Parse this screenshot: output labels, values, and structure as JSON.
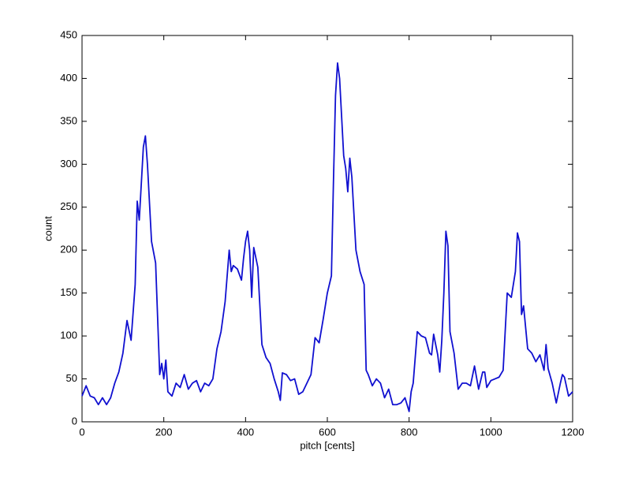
{
  "chart_data": {
    "type": "line",
    "xlabel": "pitch [cents]",
    "ylabel": "count",
    "xlim": [
      0,
      1200
    ],
    "ylim": [
      0,
      450
    ],
    "xticks": [
      0,
      200,
      400,
      600,
      800,
      1000,
      1200
    ],
    "yticks": [
      0,
      50,
      100,
      150,
      200,
      250,
      300,
      350,
      400,
      450
    ],
    "grid": false,
    "series": [
      {
        "color": "#1010d0",
        "x": [
          0,
          10,
          20,
          30,
          40,
          50,
          60,
          70,
          80,
          90,
          100,
          110,
          120,
          130,
          135,
          140,
          150,
          155,
          160,
          170,
          180,
          190,
          195,
          200,
          205,
          210,
          220,
          230,
          240,
          250,
          260,
          270,
          280,
          290,
          300,
          310,
          320,
          330,
          340,
          350,
          360,
          365,
          370,
          380,
          390,
          395,
          400,
          405,
          410,
          415,
          420,
          430,
          440,
          450,
          460,
          470,
          480,
          485,
          490,
          500,
          510,
          520,
          530,
          540,
          550,
          560,
          570,
          580,
          590,
          600,
          610,
          615,
          620,
          625,
          630,
          640,
          645,
          650,
          655,
          660,
          670,
          680,
          690,
          695,
          700,
          710,
          720,
          730,
          740,
          750,
          760,
          770,
          780,
          790,
          800,
          805,
          810,
          820,
          830,
          840,
          850,
          855,
          860,
          870,
          875,
          880,
          885,
          890,
          895,
          900,
          910,
          920,
          930,
          940,
          950,
          960,
          970,
          980,
          985,
          990,
          1000,
          1010,
          1020,
          1030,
          1040,
          1050,
          1060,
          1065,
          1070,
          1075,
          1080,
          1090,
          1100,
          1110,
          1120,
          1130,
          1135,
          1140,
          1150,
          1160,
          1170,
          1175,
          1180,
          1190,
          1200
        ],
        "values": [
          30,
          42,
          30,
          28,
          20,
          28,
          20,
          28,
          45,
          58,
          80,
          118,
          95,
          160,
          257,
          235,
          320,
          333,
          300,
          210,
          185,
          55,
          68,
          50,
          72,
          35,
          30,
          45,
          40,
          55,
          38,
          45,
          48,
          35,
          45,
          42,
          50,
          85,
          105,
          140,
          200,
          175,
          182,
          178,
          165,
          190,
          210,
          222,
          200,
          145,
          203,
          180,
          90,
          75,
          68,
          50,
          35,
          25,
          57,
          55,
          48,
          50,
          32,
          35,
          45,
          55,
          98,
          92,
          120,
          150,
          170,
          280,
          380,
          418,
          400,
          310,
          295,
          268,
          307,
          285,
          200,
          175,
          160,
          60,
          55,
          42,
          50,
          45,
          28,
          38,
          20,
          20,
          22,
          28,
          12,
          35,
          45,
          105,
          100,
          98,
          80,
          78,
          102,
          78,
          58,
          95,
          150,
          222,
          205,
          105,
          80,
          38,
          45,
          45,
          42,
          65,
          38,
          58,
          58,
          40,
          48,
          50,
          52,
          60,
          150,
          145,
          175,
          220,
          210,
          125,
          135,
          85,
          80,
          70,
          78,
          60,
          90,
          62,
          45,
          22,
          45,
          55,
          52,
          30,
          35
        ]
      }
    ]
  }
}
